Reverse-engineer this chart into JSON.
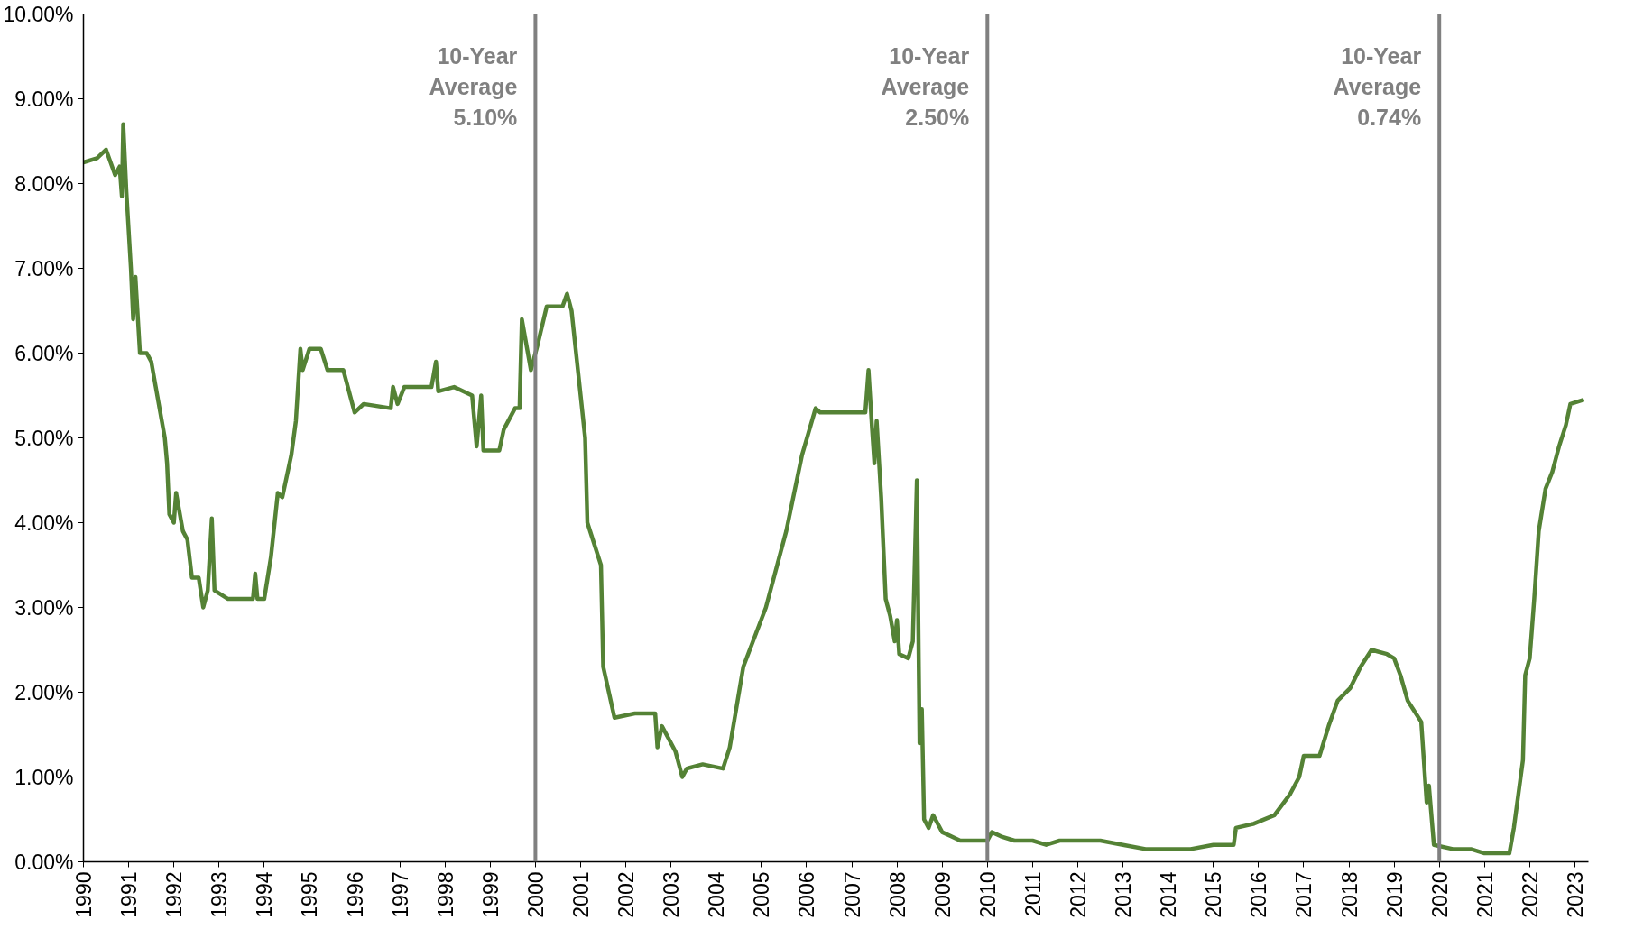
{
  "chart_data": {
    "type": "line",
    "grid": false,
    "marker": "none",
    "line_style": "solid",
    "xlim": [
      1990,
      2023.3
    ],
    "ylim": [
      0,
      10
    ],
    "xticks": [
      1990,
      1991,
      1992,
      1993,
      1994,
      1995,
      1996,
      1997,
      1998,
      1999,
      2000,
      2001,
      2002,
      2003,
      2004,
      2005,
      2006,
      2007,
      2008,
      2009,
      2010,
      2011,
      2012,
      2013,
      2014,
      2015,
      2016,
      2017,
      2018,
      2019,
      2020,
      2021,
      2022,
      2023
    ],
    "yticks": [
      {
        "value": 0,
        "label": "0.00%"
      },
      {
        "value": 1,
        "label": "1.00%"
      },
      {
        "value": 2,
        "label": "2.00%"
      },
      {
        "value": 3,
        "label": "3.00%"
      },
      {
        "value": 4,
        "label": "4.00%"
      },
      {
        "value": 5,
        "label": "5.00%"
      },
      {
        "value": 6,
        "label": "6.00%"
      },
      {
        "value": 7,
        "label": "7.00%"
      },
      {
        "value": 8,
        "label": "8.00%"
      },
      {
        "value": 9,
        "label": "9.00%"
      },
      {
        "value": 10,
        "label": "10.00%"
      }
    ],
    "ref_lines": [
      {
        "axis": "x",
        "value": 2000,
        "label": "10-Year\nAverage\n5.10%",
        "color": "#808080",
        "line_style": "solid"
      },
      {
        "axis": "x",
        "value": 2010,
        "label": "10-Year\nAverage\n2.50%",
        "color": "#808080",
        "line_style": "solid"
      },
      {
        "axis": "x",
        "value": 2020,
        "label": "10-Year\nAverage\n0.74%",
        "color": "#808080",
        "line_style": "solid"
      }
    ],
    "series": [
      {
        "color": "#548235",
        "x": [
          1990.0,
          1990.3,
          1990.5,
          1990.7,
          1990.8,
          1990.85,
          1990.88,
          1990.95,
          1991.05,
          1991.1,
          1991.15,
          1991.25,
          1991.4,
          1991.5,
          1991.6,
          1991.7,
          1991.8,
          1991.85,
          1991.9,
          1992.0,
          1992.05,
          1992.2,
          1992.3,
          1992.4,
          1992.55,
          1992.65,
          1992.75,
          1992.84,
          1992.9,
          1993.2,
          1993.5,
          1993.75,
          1993.8,
          1993.85,
          1994.0,
          1994.15,
          1994.3,
          1994.4,
          1994.6,
          1994.7,
          1994.8,
          1994.85,
          1995.0,
          1995.25,
          1995.4,
          1995.75,
          1996.0,
          1996.2,
          1996.8,
          1996.85,
          1996.95,
          1997.1,
          1997.7,
          1997.8,
          1997.85,
          1998.2,
          1998.6,
          1998.7,
          1998.8,
          1998.85,
          1999.2,
          1999.3,
          1999.55,
          1999.65,
          1999.7,
          1999.9,
          2000.05,
          2000.25,
          2000.6,
          2000.7,
          2000.8,
          2001.0,
          2001.1,
          2001.15,
          2001.45,
          2001.5,
          2001.75,
          2002.2,
          2002.65,
          2002.7,
          2002.8,
          2003.1,
          2003.25,
          2003.35,
          2003.7,
          2004.15,
          2004.3,
          2004.6,
          2005.1,
          2005.55,
          2005.9,
          2006.2,
          2006.3,
          2007.3,
          2007.37,
          2007.45,
          2007.5,
          2007.55,
          2007.65,
          2007.75,
          2007.85,
          2007.95,
          2008.0,
          2008.05,
          2008.25,
          2008.35,
          2008.44,
          2008.5,
          2008.55,
          2008.6,
          2008.7,
          2008.8,
          2009.0,
          2009.2,
          2009.4,
          2010.0,
          2010.1,
          2010.3,
          2010.6,
          2011.0,
          2011.3,
          2011.6,
          2012.0,
          2012.5,
          2013.0,
          2013.5,
          2014.0,
          2014.5,
          2015.0,
          2015.45,
          2015.5,
          2015.9,
          2016.35,
          2016.7,
          2016.9,
          2017.0,
          2017.35,
          2017.55,
          2017.75,
          2018.03,
          2018.26,
          2018.5,
          2018.84,
          2019.0,
          2019.14,
          2019.3,
          2019.42,
          2019.6,
          2019.72,
          2019.77,
          2019.88,
          2020.3,
          2020.7,
          2021.0,
          2021.4,
          2021.55,
          2021.65,
          2021.75,
          2021.85,
          2021.9,
          2022.0,
          2022.1,
          2022.2,
          2022.35,
          2022.5,
          2022.65,
          2022.8,
          2022.9,
          2023.2
        ],
        "values": [
          8.25,
          8.3,
          8.4,
          8.1,
          8.2,
          7.85,
          8.7,
          7.9,
          7.0,
          6.4,
          6.9,
          6.0,
          6.0,
          5.9,
          5.6,
          5.3,
          5.0,
          4.7,
          4.1,
          4.0,
          4.35,
          3.9,
          3.8,
          3.35,
          3.35,
          3.0,
          3.2,
          4.05,
          3.2,
          3.1,
          3.1,
          3.1,
          3.4,
          3.1,
          3.1,
          3.6,
          4.35,
          4.3,
          4.8,
          5.2,
          6.05,
          5.8,
          6.05,
          6.05,
          5.8,
          5.8,
          5.3,
          5.4,
          5.35,
          5.6,
          5.4,
          5.6,
          5.6,
          5.9,
          5.55,
          5.6,
          5.5,
          4.9,
          5.5,
          4.85,
          4.85,
          5.1,
          5.35,
          5.35,
          6.4,
          5.8,
          6.1,
          6.55,
          6.55,
          6.7,
          6.5,
          5.5,
          5.0,
          4.0,
          3.5,
          2.3,
          1.7,
          1.75,
          1.75,
          1.35,
          1.6,
          1.3,
          1.0,
          1.1,
          1.15,
          1.1,
          1.35,
          2.3,
          3.0,
          3.9,
          4.8,
          5.35,
          5.3,
          5.3,
          5.8,
          5.1,
          4.7,
          5.2,
          4.3,
          3.1,
          2.9,
          2.6,
          2.85,
          2.45,
          2.4,
          2.6,
          4.5,
          1.4,
          1.8,
          0.5,
          0.4,
          0.55,
          0.35,
          0.3,
          0.25,
          0.25,
          0.35,
          0.3,
          0.25,
          0.25,
          0.2,
          0.25,
          0.25,
          0.25,
          0.2,
          0.15,
          0.15,
          0.15,
          0.2,
          0.2,
          0.4,
          0.45,
          0.55,
          0.8,
          1.0,
          1.25,
          1.25,
          1.6,
          1.9,
          2.05,
          2.3,
          2.5,
          2.45,
          2.4,
          2.2,
          1.9,
          1.8,
          1.65,
          0.7,
          0.9,
          0.2,
          0.15,
          0.15,
          0.1,
          0.1,
          0.1,
          0.4,
          0.8,
          1.2,
          2.2,
          2.4,
          3.1,
          3.9,
          4.4,
          4.6,
          4.9,
          5.15,
          5.4,
          5.45
        ]
      }
    ]
  }
}
